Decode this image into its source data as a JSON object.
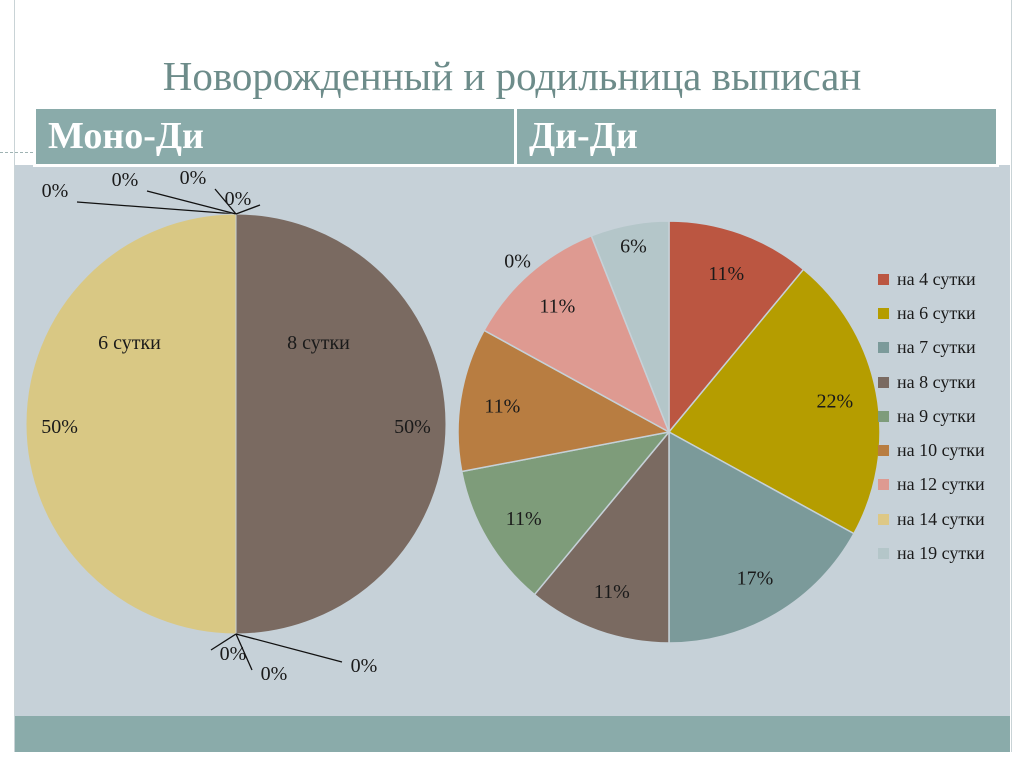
{
  "title": "Новорожденный и родильница выписан",
  "header": {
    "left": "Моно-Ди",
    "right": "Ди-Ди"
  },
  "chart_data": [
    {
      "type": "pie",
      "title": "Моно-Ди",
      "categories": [
        "на 4 сутки",
        "на 6 сутки",
        "на 7 сутки",
        "на 8 сутки",
        "на 9 сутки",
        "на 10 сутки",
        "на 12 сутки",
        "на 14 сутки",
        "на 19 сутки"
      ],
      "values": [
        0,
        50,
        0,
        50,
        0,
        0,
        0,
        0,
        0
      ],
      "value_labels": [
        "0%",
        "50%",
        "0%",
        "50%",
        "0%",
        "0%",
        "0%",
        "0%",
        "0%"
      ],
      "category_labels": {
        "1": "6 сутки",
        "3": "8 сутки"
      },
      "colors": [
        "#c0583f",
        "#d9c884",
        "#7d9a9a",
        "#7a6a61",
        "#7e9c7a",
        "#b87d41",
        "#de9a91",
        "#ddc886",
        "#b4c6c9"
      ]
    },
    {
      "type": "pie",
      "title": "Ди-Ди",
      "categories": [
        "на 4 сутки",
        "на 6 сутки",
        "на 7 сутки",
        "на 8 сутки",
        "на 9 сутки",
        "на 10 сутки",
        "на 12 сутки",
        "на 14 сутки",
        "на 19 сутки"
      ],
      "values": [
        11,
        22,
        17,
        11,
        11,
        11,
        11,
        0,
        6
      ],
      "value_labels": [
        "11%",
        "22%",
        "17%",
        "11%",
        "11%",
        "11%",
        "11%",
        "0%",
        "6%"
      ],
      "colors": [
        "#bb5641",
        "#b59d00",
        "#7b9a9a",
        "#7a6a61",
        "#7e9c7a",
        "#b87d41",
        "#de9a91",
        "#ddc886",
        "#b4c6c9"
      ],
      "legend": "right"
    }
  ]
}
